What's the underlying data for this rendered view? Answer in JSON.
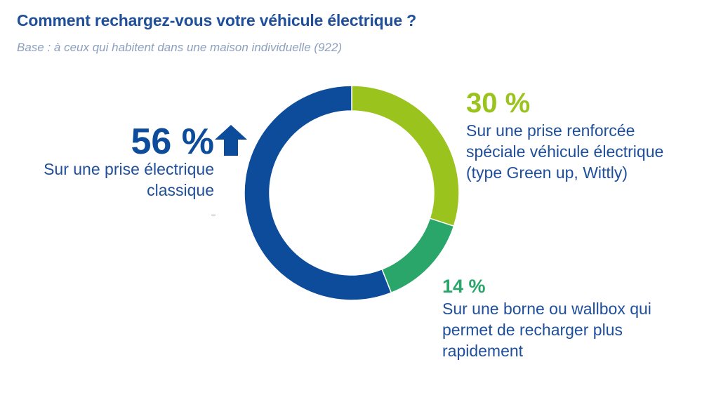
{
  "title": "Comment rechargez-vous votre véhicule électrique ?",
  "subtitle": "Base : à ceux qui habitent dans une maison individuelle (922)",
  "chart_data": {
    "type": "pie",
    "variant": "donut",
    "title": "Comment rechargez-vous votre véhicule électrique ?",
    "subtitle": "Base : à ceux qui habitent dans une maison individuelle (922)",
    "categories": [
      "Sur une prise électrique classique",
      "Sur une prise renforcée spéciale véhicule électrique (type Green up, Wittly)",
      "Sur une borne ou wallbox qui permet de recharger plus rapidement"
    ],
    "values": [
      56,
      30,
      14
    ],
    "unit": "%",
    "value_labels": [
      "56 %",
      "30 %",
      "14 %"
    ],
    "colors": [
      "#0c4c9b",
      "#9bc31e",
      "#2aa66a"
    ],
    "annotations": [
      {
        "category_index": 0,
        "icon": "up-arrow-icon"
      }
    ]
  }
}
